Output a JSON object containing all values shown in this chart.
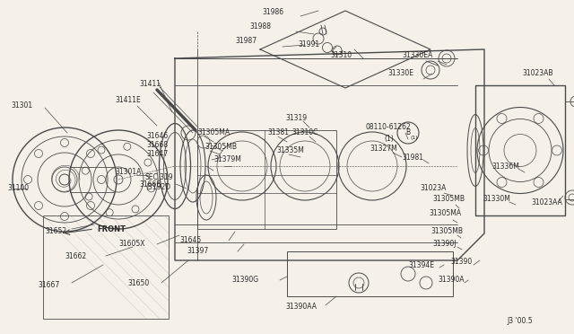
{
  "bg_color": "#f5f0e8",
  "line_color": "#4a4a4a",
  "text_color": "#2a2a2a",
  "fig_w": 6.4,
  "fig_h": 3.72,
  "dpi": 100,
  "parts": [
    "31301",
    "31411",
    "31411E",
    "31100",
    "31301A",
    "31652",
    "31662",
    "31667",
    "31650",
    "31605X",
    "31666",
    "31668",
    "31646",
    "31647",
    "31645",
    "31397",
    "31390G",
    "31390AA",
    "31986",
    "31988",
    "31987",
    "31991",
    "31310",
    "31305MA",
    "31305MB",
    "31379M",
    "31381",
    "31319",
    "31310C",
    "31335M",
    "31327M",
    "08110-61262",
    "31981",
    "31023A",
    "31330EA",
    "31330E",
    "31023AB",
    "31023AA",
    "31336M",
    "31330M",
    "31390J",
    "31394E",
    "31390",
    "31390A",
    "SEC.319",
    "31023AB",
    "31023AA",
    "31986",
    "FRONT",
    "J3 00.5"
  ]
}
